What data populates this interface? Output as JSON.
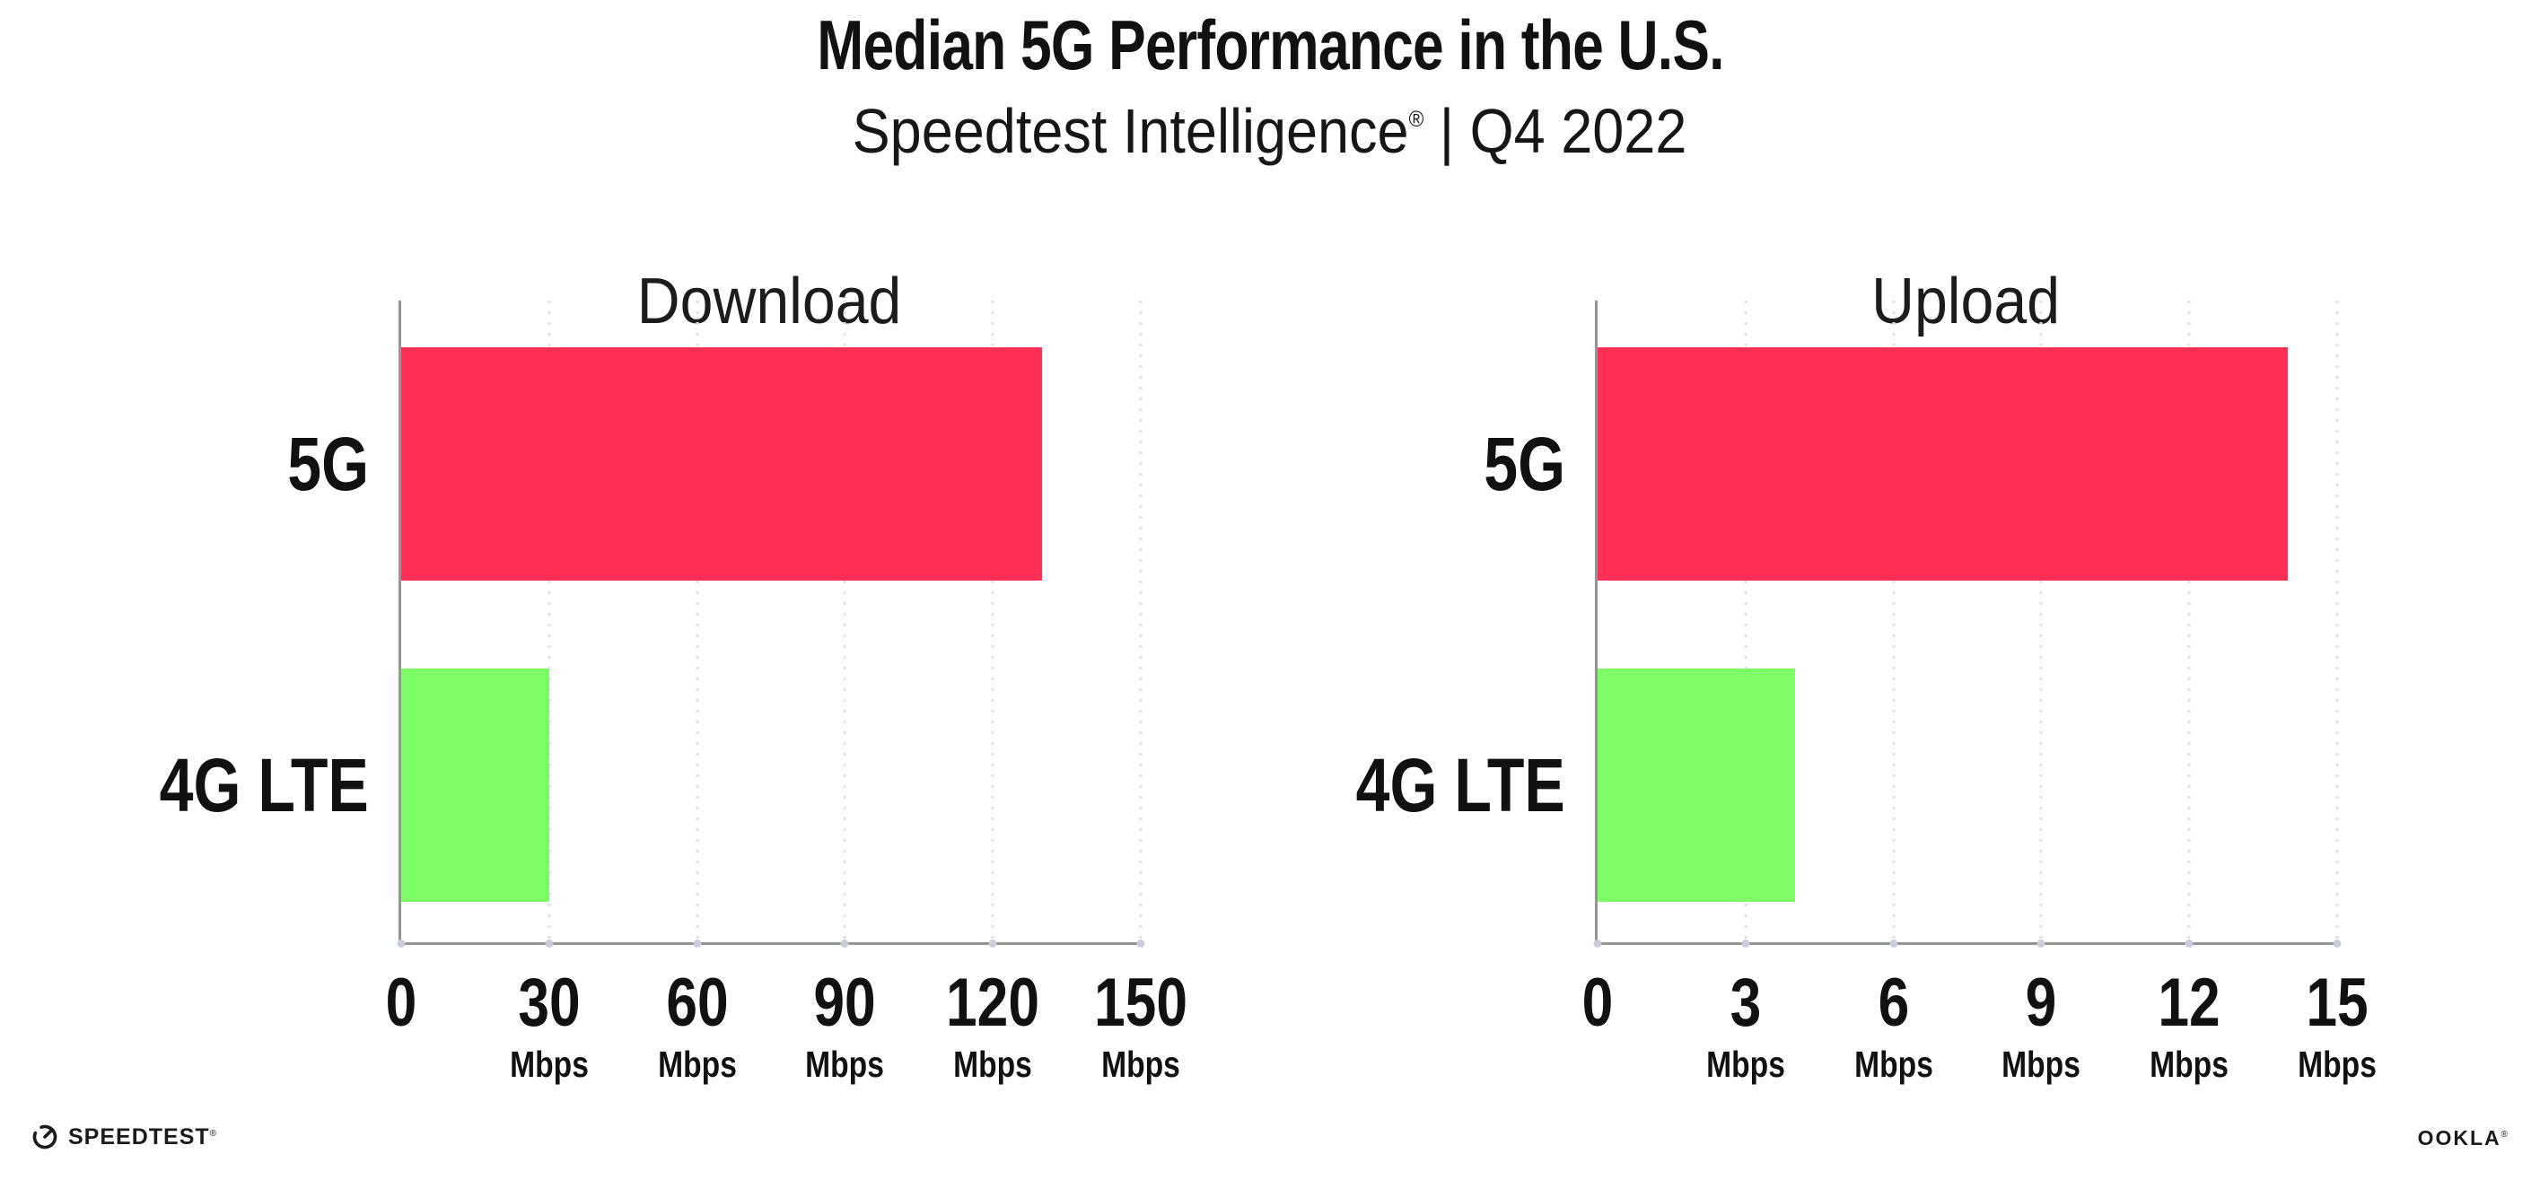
{
  "header": {
    "title": "Median 5G Performance in the U.S.",
    "subtitle_brand": "Speedtest Intelligence",
    "subtitle_reg": "®",
    "subtitle_rest": " | Q4 2022"
  },
  "colors": {
    "bar_5g": "#FF2F55",
    "bar_4g_lte": "#7EFC66",
    "axis": "#959595",
    "gridline": "#DDDFE9",
    "axis_dot": "#C9CDDB",
    "text": "#111111"
  },
  "chart_data": [
    {
      "type": "bar",
      "orientation": "horizontal",
      "title": "Download",
      "categories": [
        "5G",
        "4G LTE"
      ],
      "values": [
        130,
        30
      ],
      "unit": "Mbps",
      "xlim": [
        0,
        150
      ],
      "x_ticks": [
        0,
        30,
        60,
        90,
        120,
        150
      ],
      "bar_colors": [
        "#FF2F55",
        "#7EFC66"
      ],
      "grid": "vertical-dotted",
      "legend": "none"
    },
    {
      "type": "bar",
      "orientation": "horizontal",
      "title": "Upload",
      "categories": [
        "5G",
        "4G LTE"
      ],
      "values": [
        14,
        4
      ],
      "unit": "Mbps",
      "xlim": [
        0,
        15
      ],
      "x_ticks": [
        0,
        3,
        6,
        9,
        12,
        15
      ],
      "bar_colors": [
        "#FF2F55",
        "#7EFC66"
      ],
      "grid": "vertical-dotted",
      "legend": "none"
    }
  ],
  "footer": {
    "speedtest_wordmark": "SPEEDTEST",
    "speedtest_reg": "®",
    "ookla_wordmark": "OOKLA",
    "ookla_reg": "®"
  }
}
